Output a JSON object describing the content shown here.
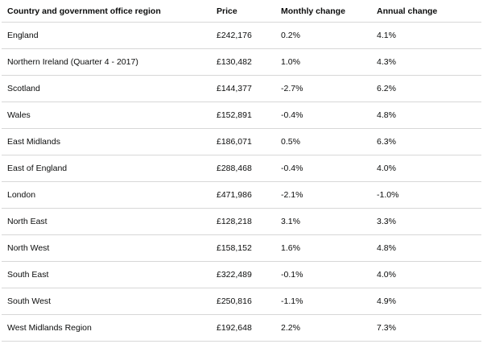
{
  "table": {
    "headers": {
      "region": "Country and government office region",
      "price": "Price",
      "monthly": "Monthly change",
      "annual": "Annual change"
    },
    "rows": [
      {
        "region": "England",
        "price": "£242,176",
        "monthly": "0.2%",
        "annual": "4.1%"
      },
      {
        "region": "Northern Ireland (Quarter 4 - 2017)",
        "price": "£130,482",
        "monthly": "1.0%",
        "annual": "4.3%"
      },
      {
        "region": "Scotland",
        "price": "£144,377",
        "monthly": "-2.7%",
        "annual": "6.2%"
      },
      {
        "region": "Wales",
        "price": "£152,891",
        "monthly": "-0.4%",
        "annual": "4.8%"
      },
      {
        "region": "East Midlands",
        "price": "£186,071",
        "monthly": "0.5%",
        "annual": "6.3%"
      },
      {
        "region": "East of England",
        "price": "£288,468",
        "monthly": "-0.4%",
        "annual": "4.0%"
      },
      {
        "region": "London",
        "price": "£471,986",
        "monthly": "-2.1%",
        "annual": "-1.0%"
      },
      {
        "region": "North East",
        "price": "£128,218",
        "monthly": "3.1%",
        "annual": "3.3%"
      },
      {
        "region": "North West",
        "price": "£158,152",
        "monthly": "1.6%",
        "annual": "4.8%"
      },
      {
        "region": "South East",
        "price": "£322,489",
        "monthly": "-0.1%",
        "annual": "4.0%"
      },
      {
        "region": "South West",
        "price": "£250,816",
        "monthly": "-1.1%",
        "annual": "4.9%"
      },
      {
        "region": "West Midlands Region",
        "price": "£192,648",
        "monthly": "2.2%",
        "annual": "7.3%"
      }
    ]
  }
}
